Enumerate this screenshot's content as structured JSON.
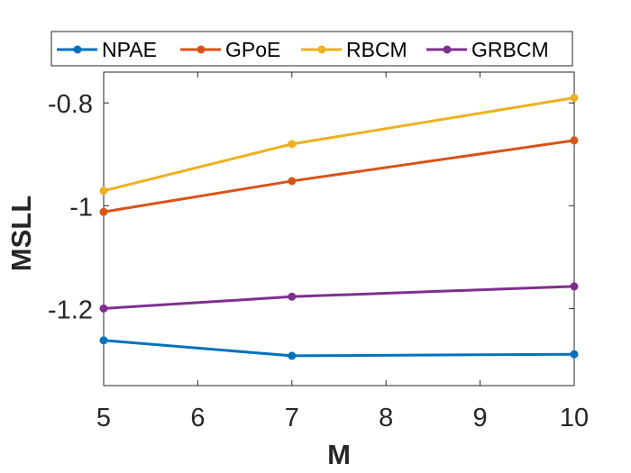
{
  "chart_data": {
    "type": "line",
    "title": "",
    "xlabel": "M",
    "ylabel": "MSLL",
    "x": [
      5,
      7,
      10
    ],
    "xlim": [
      5,
      10
    ],
    "ylim": [
      -1.35,
      -0.74
    ],
    "xticks": [
      5,
      6,
      7,
      8,
      9,
      10
    ],
    "xtick_labels": [
      "5",
      "6",
      "7",
      "8",
      "9",
      "10"
    ],
    "yticks": [
      -0.8,
      -1.0,
      -1.2
    ],
    "ytick_labels": [
      "-0.8",
      "-1",
      "-1.2"
    ],
    "grid": false,
    "legend_position": "top",
    "series": [
      {
        "name": "NPAE",
        "color": "#0072BD",
        "values": [
          -1.262,
          -1.292,
          -1.289
        ]
      },
      {
        "name": "GPoE",
        "color": "#D95319",
        "values": [
          -1.012,
          -0.952,
          -0.873
        ]
      },
      {
        "name": "RBCM",
        "color": "#EDB120",
        "values": [
          -0.971,
          -0.88,
          -0.79
        ]
      },
      {
        "name": "GRBCM",
        "color": "#7E2F8E",
        "values": [
          -1.2,
          -1.177,
          -1.157
        ]
      }
    ]
  }
}
